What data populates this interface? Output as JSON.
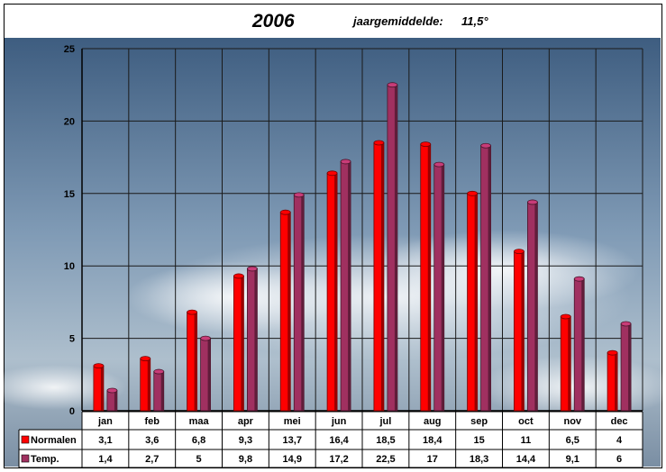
{
  "header": {
    "year": "2006",
    "avg_label": "jaargemiddelde:",
    "avg_value": "11,5°"
  },
  "chart_data": {
    "type": "bar",
    "categories": [
      "jan",
      "feb",
      "maa",
      "apr",
      "mei",
      "jun",
      "jul",
      "aug",
      "sep",
      "oct",
      "nov",
      "dec"
    ],
    "series": [
      {
        "name": "Normalen",
        "color": "#ff0000",
        "values": [
          3.1,
          3.6,
          6.8,
          9.3,
          13.7,
          16.4,
          18.5,
          18.4,
          15,
          11,
          6.5,
          4
        ],
        "labels": [
          "3,1",
          "3,6",
          "6,8",
          "9,3",
          "13,7",
          "16,4",
          "18,5",
          "18,4",
          "15",
          "11",
          "6,5",
          "4"
        ]
      },
      {
        "name": "Temp.",
        "color": "#a03060",
        "values": [
          1.4,
          2.7,
          5,
          9.8,
          14.9,
          17.2,
          22.5,
          17,
          18.3,
          14.4,
          9.1,
          6
        ],
        "labels": [
          "1,4",
          "2,7",
          "5",
          "9,8",
          "14,9",
          "17,2",
          "22,5",
          "17",
          "18,3",
          "14,4",
          "9,1",
          "6"
        ]
      }
    ],
    "yticks": [
      "0",
      "5",
      "10",
      "15",
      "20",
      "25"
    ],
    "ylim": [
      0,
      25
    ],
    "grid": true,
    "legend": "data-table-below"
  }
}
